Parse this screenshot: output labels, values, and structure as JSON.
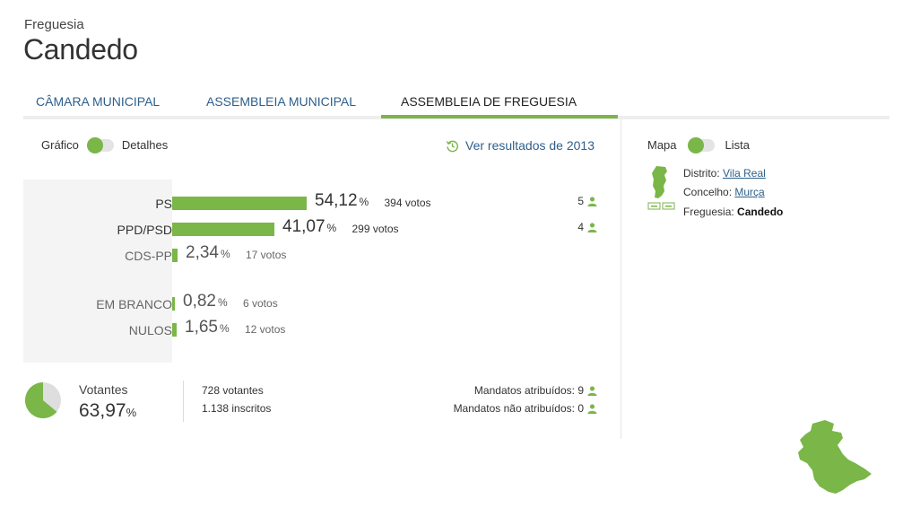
{
  "header": {
    "subtitle": "Freguesia",
    "title": "Candedo"
  },
  "tabs": [
    {
      "label": "CÂMARA MUNICIPAL",
      "active": false
    },
    {
      "label": "ASSEMBLEIA MUNICIPAL",
      "active": false
    },
    {
      "label": "ASSEMBLEIA DE FREGUESIA",
      "active": true
    }
  ],
  "view_toggle": {
    "left": "Gráfico",
    "right": "Detalhes",
    "selected": "Gráfico"
  },
  "history_link": {
    "label": "Ver resultados de 2013",
    "icon": "history-icon"
  },
  "results": [
    {
      "label": "PS",
      "pct": "54,12",
      "pct_value": 54.12,
      "votes": "394 votos",
      "seats": "5"
    },
    {
      "label": "PPD/PSD",
      "pct": "41,07",
      "pct_value": 41.07,
      "votes": "299 votos",
      "seats": "4"
    },
    {
      "label": "CDS-PP",
      "pct": "2,34",
      "pct_value": 2.34,
      "votes": "17 votos",
      "seats": ""
    },
    {
      "label": "EM BRANCO",
      "pct": "0,82",
      "pct_value": 0.82,
      "votes": "6 votos",
      "seats": ""
    },
    {
      "label": "NULOS",
      "pct": "1,65",
      "pct_value": 1.65,
      "votes": "12 votos",
      "seats": ""
    }
  ],
  "percent_sign": "%",
  "turnout": {
    "label": "Votantes",
    "value": "63,97",
    "fraction": 0.6397,
    "voters": "728 votantes",
    "registered": "1.138 inscritos"
  },
  "mandates": {
    "assigned": "Mandatos atribuídos: 9",
    "unassigned": "Mandatos não atribuídos: 0"
  },
  "map_toggle": {
    "left": "Mapa",
    "right": "Lista",
    "selected": "Mapa"
  },
  "location": {
    "district_label": "Distrito:",
    "district": "Vila Real",
    "council_label": "Concelho:",
    "council": "Murça",
    "parish_label": "Freguesia:",
    "parish": "Candedo"
  },
  "colors": {
    "accent": "#7ab648",
    "link": "#2d5f8b",
    "panel": "#f4f4f4"
  }
}
